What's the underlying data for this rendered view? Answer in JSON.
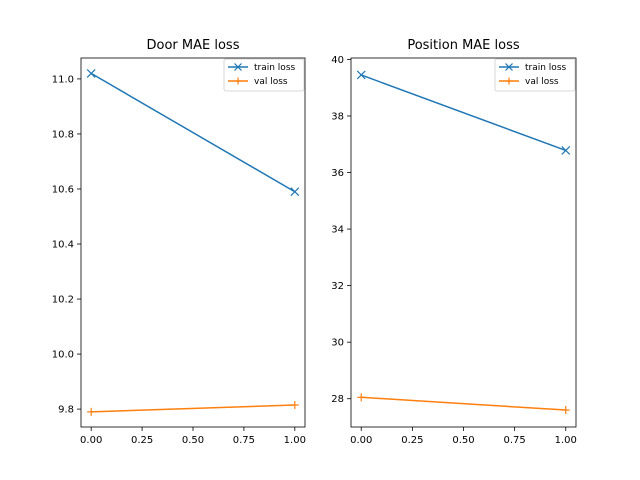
{
  "chart_data": [
    {
      "type": "line",
      "title": "Door MAE loss",
      "xlabel": "",
      "ylabel": "",
      "x": [
        0,
        1
      ],
      "xlim": [
        -0.05,
        1.05
      ],
      "ylim": [
        9.735,
        11.076
      ],
      "xticks": [
        0,
        0.25,
        0.5,
        0.75,
        1
      ],
      "xtick_labels": [
        "0.00",
        "0.25",
        "0.50",
        "0.75",
        "1.00"
      ],
      "yticks": [
        9.8,
        10.0,
        10.2,
        10.4,
        10.6,
        10.8,
        11.0
      ],
      "ytick_labels": [
        "9.8",
        "10.0",
        "10.2",
        "10.4",
        "10.6",
        "10.8",
        "11.0"
      ],
      "grid": false,
      "legend": "top-right",
      "series": [
        {
          "name": "train loss",
          "values": [
            11.02,
            10.59
          ],
          "color": "#1f77b4",
          "marker": "x"
        },
        {
          "name": "val loss",
          "values": [
            9.79,
            9.815
          ],
          "color": "#ff7f0e",
          "marker": "+"
        }
      ]
    },
    {
      "type": "line",
      "title": "Position MAE loss",
      "xlabel": "",
      "ylabel": "",
      "x": [
        0,
        1
      ],
      "xlim": [
        -0.05,
        1.05
      ],
      "ylim": [
        27.0,
        40.05
      ],
      "xticks": [
        0,
        0.25,
        0.5,
        0.75,
        1
      ],
      "xtick_labels": [
        "0.00",
        "0.25",
        "0.50",
        "0.75",
        "1.00"
      ],
      "yticks": [
        28,
        30,
        32,
        34,
        36,
        38,
        40
      ],
      "ytick_labels": [
        "28",
        "30",
        "32",
        "34",
        "36",
        "38",
        "40"
      ],
      "grid": false,
      "legend": "top-right",
      "series": [
        {
          "name": "train loss",
          "values": [
            39.45,
            36.78
          ],
          "color": "#1f77b4",
          "marker": "x"
        },
        {
          "name": "val loss",
          "values": [
            28.05,
            27.6
          ],
          "color": "#ff7f0e",
          "marker": "+"
        }
      ]
    }
  ]
}
